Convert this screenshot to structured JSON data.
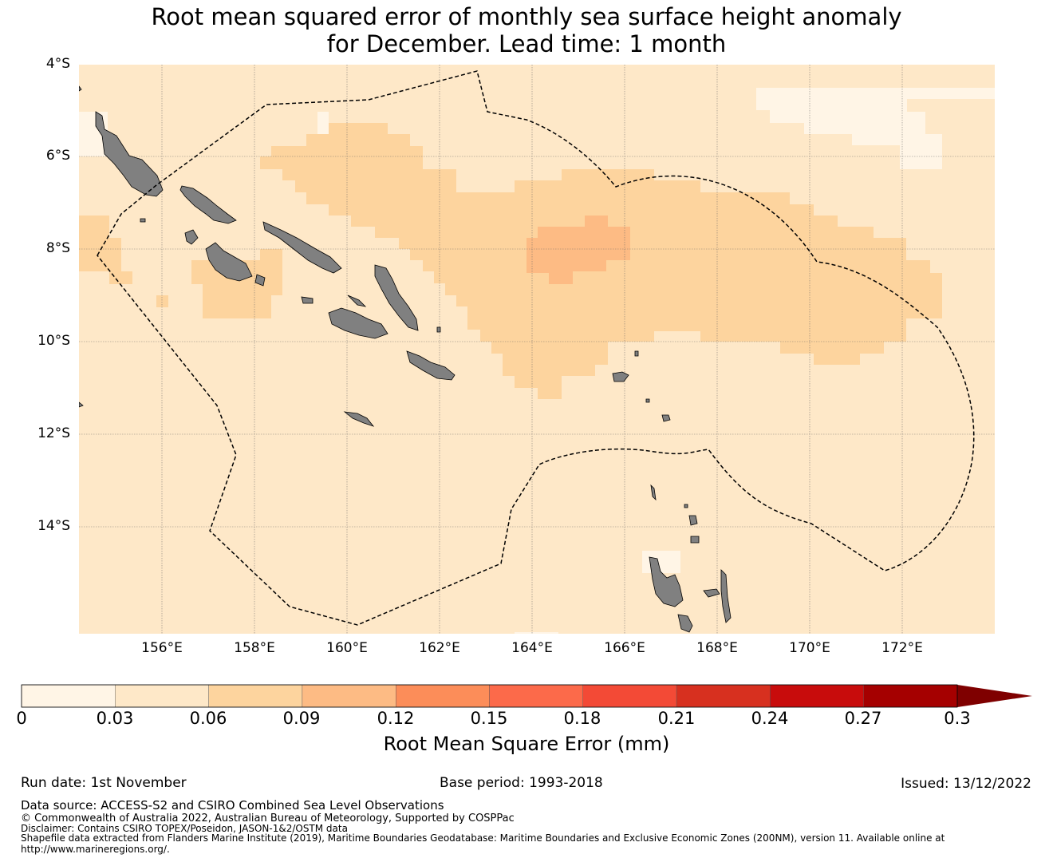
{
  "title": {
    "line1": "Root mean squared error of monthly sea surface height anomaly",
    "line2": "for December. Lead time: 1 month"
  },
  "map": {
    "lat_labels": [
      "4°S",
      "6°S",
      "8°S",
      "10°S",
      "12°S",
      "14°S"
    ],
    "lon_labels": [
      "156°E",
      "158°E",
      "160°E",
      "162°E",
      "164°E",
      "166°E",
      "168°E",
      "170°E",
      "172°E"
    ],
    "colors": {
      "land": "#808080",
      "ocean_base": "#fee8c8",
      "eez_line": "#000000"
    }
  },
  "colorbar": {
    "title": "Root Mean Square Error (mm)",
    "ticks": [
      "0",
      "0.03",
      "0.06",
      "0.09",
      "0.12",
      "0.15",
      "0.18",
      "0.21",
      "0.24",
      "0.27",
      "0.3"
    ],
    "colors": [
      "#fff5e6",
      "#fee8c8",
      "#fdd49e",
      "#fdbb84",
      "#fc8d59",
      "#fc6a4a",
      "#f34a36",
      "#d7301f",
      "#c80c0c",
      "#a50000",
      "#7f0000"
    ]
  },
  "footer": {
    "run_date": "Run date: 1st November",
    "base_period": "Base period: 1993-2018",
    "issued": "Issued: 13/12/2022",
    "data_source": "Data source: ACCESS-S2 and CSIRO Combined Sea Level Observations",
    "copyright": "© Commonwealth of Australia 2022, Australian Bureau of Meteorology, Supported by COSPPac",
    "disclaimer": "Disclaimer: Contains CSIRO TOPEX/Poseidon, JASON-1&2/OSTM data",
    "shapefile": "Shapefile data extracted from Flanders Marine Institute (2019), Maritime Boundaries Geodatabase: Maritime Boundaries and Exclusive Economic Zones (200NM), version 11. Available online at",
    "url": "http://www.marineregions.org/."
  }
}
